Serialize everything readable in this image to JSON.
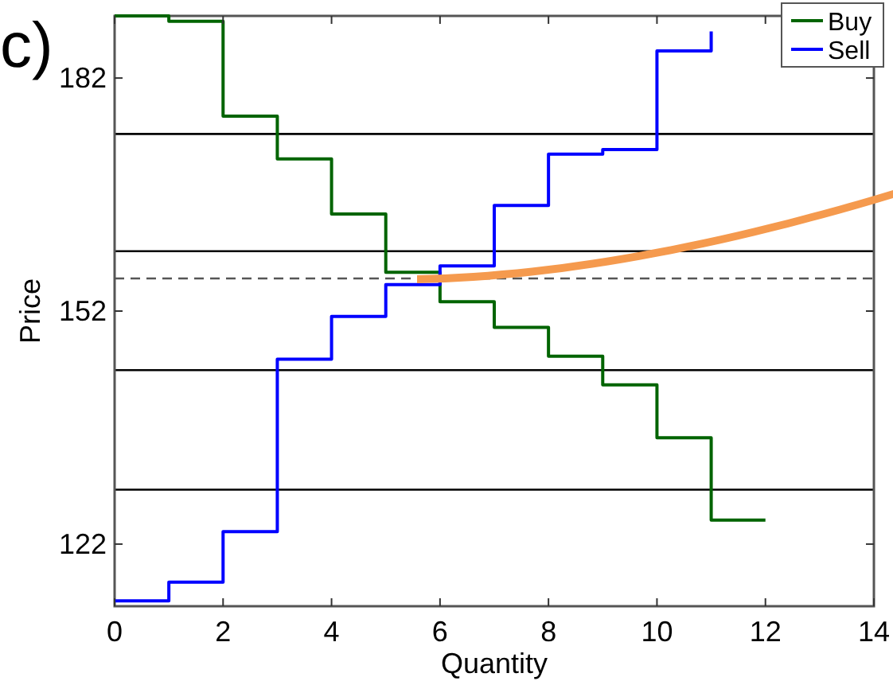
{
  "chart_data": {
    "type": "step",
    "xlabel": "Quantity",
    "ylabel": "Price",
    "annotations": [
      "c)"
    ],
    "xlim": [
      0,
      14
    ],
    "xticks": [
      0,
      2,
      4,
      6,
      8,
      10,
      12,
      14
    ],
    "ylim": [
      114,
      190
    ],
    "yticks": [
      122,
      152,
      182
    ],
    "series": [
      {
        "name": "Buy",
        "color": "#006400",
        "x": [
          0,
          1,
          2,
          3,
          4,
          5,
          6,
          7,
          8,
          9,
          10,
          11,
          12
        ],
        "values": [
          190,
          189.3,
          177.1,
          171.6,
          164.5,
          157,
          153.2,
          149.9,
          146.2,
          142.5,
          135.7,
          125.1,
          125.1
        ]
      },
      {
        "name": "Sell",
        "color": "#0000ff",
        "x": [
          0,
          1,
          2,
          3,
          4,
          5,
          6,
          7,
          8,
          9,
          10,
          11
        ],
        "values": [
          114.7,
          117.1,
          123.6,
          145.8,
          151.3,
          155.4,
          157.8,
          165.6,
          172.2,
          172.8,
          185.5,
          188
        ]
      }
    ],
    "ref_lines": [
      {
        "axis": "y",
        "value": 174.8,
        "color": "#000000",
        "line_style": "solid"
      },
      {
        "axis": "y",
        "value": 159.7,
        "color": "#000000",
        "line_style": "solid"
      },
      {
        "axis": "y",
        "value": 156.2,
        "color": "#555555",
        "line_style": "dashed"
      },
      {
        "axis": "y",
        "value": 144.4,
        "color": "#000000",
        "line_style": "solid"
      },
      {
        "axis": "y",
        "value": 129,
        "color": "#000000",
        "line_style": "solid"
      }
    ],
    "legend": "top right",
    "grid": false,
    "marker": "none",
    "line_style": "solid"
  }
}
